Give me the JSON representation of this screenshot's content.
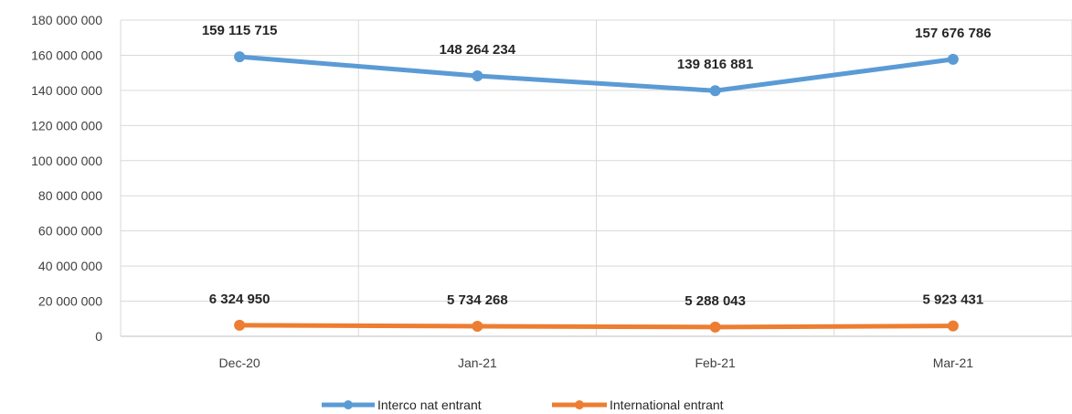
{
  "chart_data": {
    "type": "line",
    "title": "",
    "xlabel": "",
    "ylabel": "",
    "categories": [
      "Dec-20",
      "Jan-21",
      "Feb-21",
      "Mar-21"
    ],
    "ylim": [
      0,
      180000000
    ],
    "yticks": [
      0,
      20000000,
      40000000,
      60000000,
      80000000,
      100000000,
      120000000,
      140000000,
      160000000,
      180000000
    ],
    "ytick_labels": [
      "0",
      "20 000 000",
      "40 000 000",
      "60 000 000",
      "80 000 000",
      "100 000 000",
      "120 000 000",
      "140 000 000",
      "160 000 000",
      "180 000 000"
    ],
    "grid": true,
    "legend_position": "bottom",
    "series": [
      {
        "name": "Interco nat entrant",
        "color": "#5b9bd5",
        "values": [
          159115715,
          148264234,
          139816881,
          157676786
        ],
        "labels": [
          "159 115 715",
          "148 264 234",
          "139 816 881",
          "157 676 786"
        ]
      },
      {
        "name": "International entrant",
        "color": "#ed7d31",
        "values": [
          6324950,
          5734268,
          5288043,
          5923431
        ],
        "labels": [
          "6 324 950",
          "5 734 268",
          "5 288 043",
          "5 923 431"
        ]
      }
    ]
  }
}
